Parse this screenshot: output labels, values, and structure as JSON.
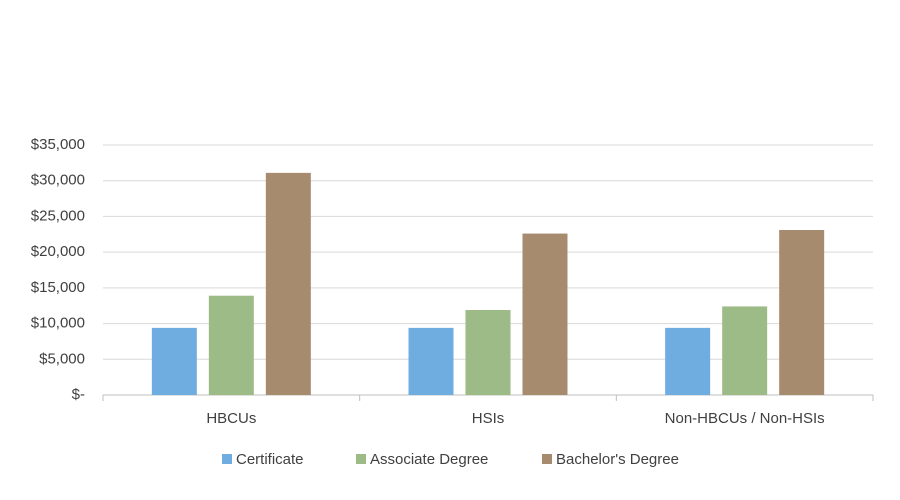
{
  "chart_data": {
    "type": "bar",
    "categories": [
      "HBCUs",
      "HSIs",
      "Non-HBCUs / Non-HSIs"
    ],
    "series": [
      {
        "name": "Certificate",
        "color": "#6fade0",
        "values": [
          9400,
          9400,
          9400
        ]
      },
      {
        "name": "Associate Degree",
        "color": "#9dbb86",
        "values": [
          13900,
          11900,
          12400
        ]
      },
      {
        "name": "Bachelor's Degree",
        "color": "#a78b6f",
        "values": [
          31100,
          22600,
          23100
        ]
      }
    ],
    "ylim": [
      0,
      35000
    ],
    "yticks": [
      {
        "value": 0,
        "label": "$-"
      },
      {
        "value": 5000,
        "label": "$5,000"
      },
      {
        "value": 10000,
        "label": "$10,000"
      },
      {
        "value": 15000,
        "label": "$15,000"
      },
      {
        "value": 20000,
        "label": "$20,000"
      },
      {
        "value": 25000,
        "label": "$25,000"
      },
      {
        "value": 30000,
        "label": "$30,000"
      },
      {
        "value": 35000,
        "label": "$35,000"
      }
    ],
    "grid": true,
    "legend": "bottom"
  }
}
